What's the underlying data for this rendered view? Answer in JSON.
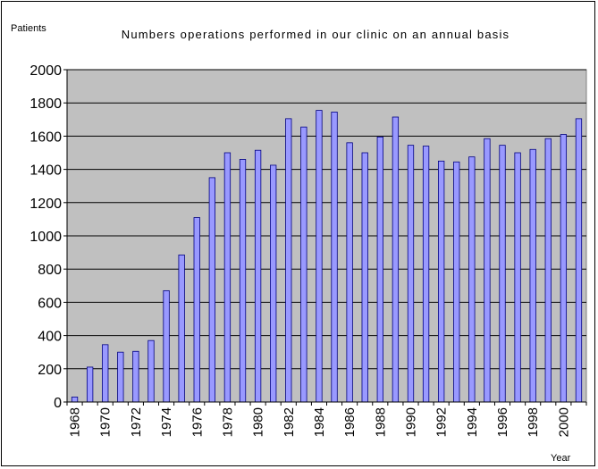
{
  "chart_data": {
    "type": "bar",
    "title": "Numbers operations performed in our clinic on an annual basis",
    "ylabel": "Patients",
    "xlabel": "Year",
    "ylim": [
      0,
      2000
    ],
    "yticks": [
      0,
      200,
      400,
      600,
      800,
      1000,
      1200,
      1400,
      1600,
      1800,
      2000
    ],
    "xtick_labels": [
      "1968",
      "1970",
      "1972",
      "1974",
      "1976",
      "1978",
      "1980",
      "1982",
      "1984",
      "1986",
      "1988",
      "1990",
      "1992",
      "1994",
      "1996",
      "1998",
      "2000"
    ],
    "categories": [
      "1968",
      "1969",
      "1970",
      "1971",
      "1972",
      "1973",
      "1974",
      "1975",
      "1976",
      "1977",
      "1978",
      "1979",
      "1980",
      "1981",
      "1982",
      "1983",
      "1984",
      "1985",
      "1986",
      "1987",
      "1988",
      "1989",
      "1990",
      "1991",
      "1992",
      "1993",
      "1994",
      "1995",
      "1996",
      "1997",
      "1998",
      "1999",
      "2000",
      "2001"
    ],
    "values": [
      30,
      210,
      345,
      300,
      305,
      370,
      670,
      885,
      1110,
      1350,
      1500,
      1460,
      1515,
      1425,
      1705,
      1655,
      1755,
      1745,
      1560,
      1500,
      1595,
      1715,
      1545,
      1540,
      1450,
      1445,
      1475,
      1585,
      1545,
      1500,
      1520,
      1585,
      1610,
      1705
    ],
    "bar_color": "#9999ff",
    "plot_background": "#c0c0c0",
    "grid": true
  }
}
